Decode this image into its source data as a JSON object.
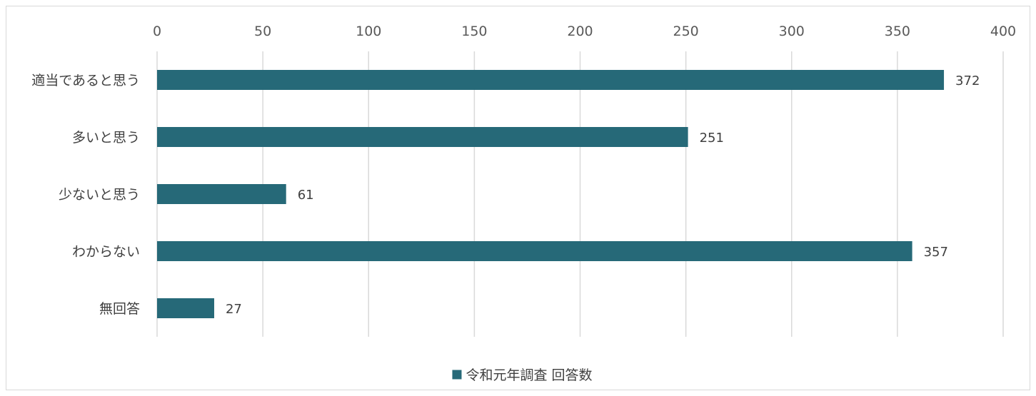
{
  "chart_data": {
    "type": "bar",
    "orientation": "horizontal",
    "categories": [
      "適当であると思う",
      "多いと思う",
      "少ないと思う",
      "わからない",
      "無回答"
    ],
    "series": [
      {
        "name": "令和元年調査 回答数",
        "values": [
          372,
          251,
          61,
          357,
          27
        ],
        "color": "#266978"
      }
    ],
    "xlim": [
      0,
      400
    ],
    "x_ticks": [
      0,
      50,
      100,
      150,
      200,
      250,
      300,
      350,
      400
    ],
    "x_axis_position": "top",
    "grid": true,
    "data_labels": true,
    "legend_position": "bottom"
  },
  "colors": {
    "bar": "#266978",
    "gridline": "#d9d9d9",
    "text": "#404040",
    "border": "#d9d9d9"
  }
}
